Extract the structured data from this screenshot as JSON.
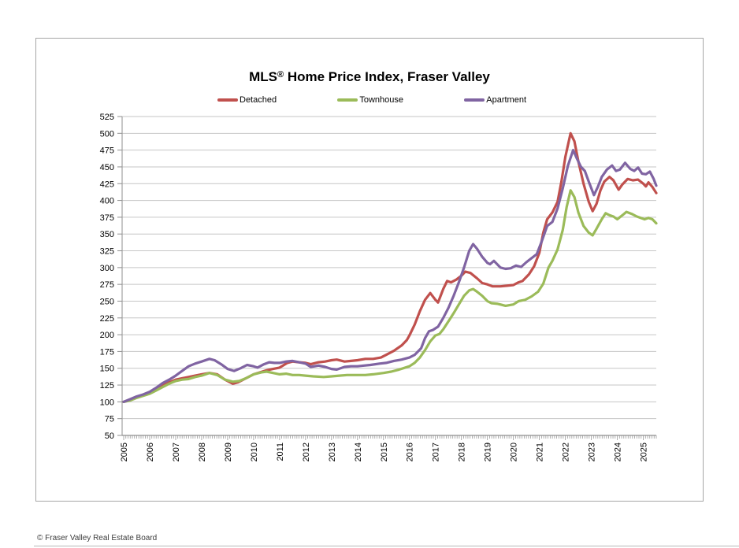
{
  "page": {
    "footer": "© Fraser Valley Real Estate Board"
  },
  "chart_data": {
    "type": "line",
    "title": "MLS® Home Price Index, Fraser Valley",
    "title_parts": {
      "mls": "MLS",
      "reg": "®",
      "rest": " Home Price Index, Fraser Valley"
    },
    "grid": true,
    "legend_position": "top",
    "x_axis": {
      "start": 2005,
      "end": 2025.5,
      "minor_ticks": "monthly",
      "tick_labels": [
        "2005",
        "2006",
        "2007",
        "2008",
        "2009",
        "2010",
        "2011",
        "2012",
        "2013",
        "2014",
        "2015",
        "2016",
        "2017",
        "2018",
        "2019",
        "2020",
        "2021",
        "2022",
        "2023",
        "2024",
        "2025"
      ]
    },
    "y_axis": {
      "min": 50,
      "max": 525,
      "step": 25,
      "tick_labels": [
        "525",
        "500",
        "475",
        "450",
        "425",
        "400",
        "375",
        "350",
        "325",
        "300",
        "275",
        "250",
        "225",
        "200",
        "175",
        "150",
        "125",
        "100",
        "75",
        "50"
      ]
    },
    "series": [
      {
        "name": "Detached",
        "color": "#C0504D",
        "points": [
          [
            2005,
            100
          ],
          [
            2005.25,
            103
          ],
          [
            2005.5,
            107
          ],
          [
            2005.75,
            110
          ],
          [
            2006,
            113
          ],
          [
            2006.25,
            118
          ],
          [
            2006.5,
            124
          ],
          [
            2006.75,
            129
          ],
          [
            2007,
            133
          ],
          [
            2007.25,
            135
          ],
          [
            2007.5,
            137
          ],
          [
            2007.75,
            139
          ],
          [
            2008,
            141
          ],
          [
            2008.3,
            143
          ],
          [
            2008.6,
            141
          ],
          [
            2008.9,
            133
          ],
          [
            2009.2,
            127
          ],
          [
            2009.4,
            129
          ],
          [
            2009.6,
            133
          ],
          [
            2009.8,
            137
          ],
          [
            2010,
            141
          ],
          [
            2010.25,
            144
          ],
          [
            2010.5,
            147
          ],
          [
            2010.75,
            149
          ],
          [
            2011,
            151
          ],
          [
            2011.3,
            158
          ],
          [
            2011.5,
            160
          ],
          [
            2011.75,
            159
          ],
          [
            2012,
            158
          ],
          [
            2012.2,
            156
          ],
          [
            2012.5,
            159
          ],
          [
            2012.75,
            160
          ],
          [
            2013,
            162
          ],
          [
            2013.2,
            163
          ],
          [
            2013.5,
            160
          ],
          [
            2013.75,
            161
          ],
          [
            2014,
            162
          ],
          [
            2014.3,
            164
          ],
          [
            2014.6,
            164
          ],
          [
            2014.9,
            166
          ],
          [
            2015.1,
            170
          ],
          [
            2015.4,
            176
          ],
          [
            2015.7,
            184
          ],
          [
            2015.9,
            192
          ],
          [
            2016,
            199
          ],
          [
            2016.2,
            215
          ],
          [
            2016.4,
            235
          ],
          [
            2016.6,
            252
          ],
          [
            2016.8,
            262
          ],
          [
            2017,
            252
          ],
          [
            2017.1,
            248
          ],
          [
            2017.3,
            268
          ],
          [
            2017.45,
            280
          ],
          [
            2017.6,
            278
          ],
          [
            2017.8,
            282
          ],
          [
            2018,
            288
          ],
          [
            2018.15,
            294
          ],
          [
            2018.35,
            292
          ],
          [
            2018.6,
            284
          ],
          [
            2018.8,
            277
          ],
          [
            2019,
            275
          ],
          [
            2019.2,
            272
          ],
          [
            2019.5,
            272
          ],
          [
            2019.75,
            273
          ],
          [
            2020,
            274
          ],
          [
            2020.2,
            278
          ],
          [
            2020.35,
            280
          ],
          [
            2020.6,
            290
          ],
          [
            2020.8,
            302
          ],
          [
            2021,
            322
          ],
          [
            2021.15,
            352
          ],
          [
            2021.3,
            372
          ],
          [
            2021.5,
            382
          ],
          [
            2021.7,
            398
          ],
          [
            2021.85,
            428
          ],
          [
            2022,
            465
          ],
          [
            2022.2,
            500
          ],
          [
            2022.35,
            488
          ],
          [
            2022.5,
            458
          ],
          [
            2022.7,
            425
          ],
          [
            2022.9,
            398
          ],
          [
            2023.05,
            384
          ],
          [
            2023.2,
            395
          ],
          [
            2023.35,
            415
          ],
          [
            2023.5,
            428
          ],
          [
            2023.7,
            435
          ],
          [
            2023.85,
            430
          ],
          [
            2024.05,
            416
          ],
          [
            2024.2,
            424
          ],
          [
            2024.4,
            432
          ],
          [
            2024.6,
            430
          ],
          [
            2024.8,
            431
          ],
          [
            2025,
            425
          ],
          [
            2025.1,
            421
          ],
          [
            2025.2,
            427
          ],
          [
            2025.35,
            420
          ],
          [
            2025.5,
            411
          ]
        ]
      },
      {
        "name": "Townhouse",
        "color": "#9BBB59",
        "points": [
          [
            2005,
            100
          ],
          [
            2005.25,
            102
          ],
          [
            2005.5,
            106
          ],
          [
            2005.75,
            109
          ],
          [
            2006,
            112
          ],
          [
            2006.25,
            117
          ],
          [
            2006.5,
            122
          ],
          [
            2006.75,
            127
          ],
          [
            2007,
            131
          ],
          [
            2007.25,
            133
          ],
          [
            2007.5,
            134
          ],
          [
            2007.75,
            137
          ],
          [
            2008,
            139
          ],
          [
            2008.3,
            143
          ],
          [
            2008.6,
            140
          ],
          [
            2008.9,
            133
          ],
          [
            2009.2,
            130
          ],
          [
            2009.45,
            131
          ],
          [
            2009.7,
            135
          ],
          [
            2010,
            141
          ],
          [
            2010.3,
            144
          ],
          [
            2010.5,
            145
          ],
          [
            2010.75,
            143
          ],
          [
            2011,
            141
          ],
          [
            2011.25,
            142
          ],
          [
            2011.5,
            140
          ],
          [
            2011.75,
            140
          ],
          [
            2012,
            139
          ],
          [
            2012.3,
            138
          ],
          [
            2012.7,
            137
          ],
          [
            2013,
            138
          ],
          [
            2013.3,
            139
          ],
          [
            2013.6,
            140
          ],
          [
            2014,
            140
          ],
          [
            2014.3,
            140
          ],
          [
            2014.6,
            141
          ],
          [
            2015,
            143
          ],
          [
            2015.3,
            145
          ],
          [
            2015.6,
            148
          ],
          [
            2016,
            153
          ],
          [
            2016.2,
            158
          ],
          [
            2016.4,
            166
          ],
          [
            2016.6,
            177
          ],
          [
            2016.8,
            190
          ],
          [
            2017,
            199
          ],
          [
            2017.15,
            201
          ],
          [
            2017.3,
            208
          ],
          [
            2017.5,
            220
          ],
          [
            2017.7,
            232
          ],
          [
            2017.9,
            245
          ],
          [
            2018.1,
            258
          ],
          [
            2018.3,
            266
          ],
          [
            2018.45,
            268
          ],
          [
            2018.6,
            264
          ],
          [
            2018.8,
            258
          ],
          [
            2019,
            250
          ],
          [
            2019.15,
            247
          ],
          [
            2019.4,
            246
          ],
          [
            2019.7,
            243
          ],
          [
            2020,
            245
          ],
          [
            2020.2,
            250
          ],
          [
            2020.45,
            252
          ],
          [
            2020.7,
            257
          ],
          [
            2020.95,
            264
          ],
          [
            2021.15,
            276
          ],
          [
            2021.35,
            300
          ],
          [
            2021.5,
            310
          ],
          [
            2021.7,
            327
          ],
          [
            2021.9,
            356
          ],
          [
            2022.05,
            390
          ],
          [
            2022.2,
            415
          ],
          [
            2022.35,
            405
          ],
          [
            2022.5,
            382
          ],
          [
            2022.7,
            362
          ],
          [
            2022.9,
            352
          ],
          [
            2023.05,
            348
          ],
          [
            2023.2,
            358
          ],
          [
            2023.4,
            372
          ],
          [
            2023.55,
            381
          ],
          [
            2023.7,
            378
          ],
          [
            2023.85,
            376
          ],
          [
            2024,
            372
          ],
          [
            2024.2,
            378
          ],
          [
            2024.35,
            383
          ],
          [
            2024.55,
            380
          ],
          [
            2024.75,
            376
          ],
          [
            2024.9,
            374
          ],
          [
            2025.05,
            372
          ],
          [
            2025.2,
            374
          ],
          [
            2025.35,
            372
          ],
          [
            2025.5,
            366
          ]
        ]
      },
      {
        "name": "Apartment",
        "color": "#8064A2",
        "points": [
          [
            2005,
            100
          ],
          [
            2005.25,
            104
          ],
          [
            2005.5,
            108
          ],
          [
            2005.75,
            111
          ],
          [
            2006,
            115
          ],
          [
            2006.25,
            121
          ],
          [
            2006.5,
            128
          ],
          [
            2006.75,
            133
          ],
          [
            2007,
            139
          ],
          [
            2007.25,
            146
          ],
          [
            2007.5,
            153
          ],
          [
            2007.75,
            157
          ],
          [
            2008,
            160
          ],
          [
            2008.3,
            164
          ],
          [
            2008.5,
            162
          ],
          [
            2008.75,
            156
          ],
          [
            2009,
            149
          ],
          [
            2009.25,
            146
          ],
          [
            2009.5,
            150
          ],
          [
            2009.75,
            155
          ],
          [
            2010,
            153
          ],
          [
            2010.15,
            151
          ],
          [
            2010.4,
            156
          ],
          [
            2010.6,
            159
          ],
          [
            2010.8,
            158
          ],
          [
            2011,
            158
          ],
          [
            2011.25,
            160
          ],
          [
            2011.5,
            161
          ],
          [
            2011.75,
            159
          ],
          [
            2012,
            157
          ],
          [
            2012.2,
            152
          ],
          [
            2012.5,
            154
          ],
          [
            2012.75,
            152
          ],
          [
            2013,
            149
          ],
          [
            2013.2,
            148
          ],
          [
            2013.5,
            152
          ],
          [
            2013.75,
            153
          ],
          [
            2014,
            153
          ],
          [
            2014.25,
            154
          ],
          [
            2014.5,
            155
          ],
          [
            2014.85,
            157
          ],
          [
            2015.1,
            158
          ],
          [
            2015.4,
            161
          ],
          [
            2015.7,
            163
          ],
          [
            2016,
            166
          ],
          [
            2016.2,
            170
          ],
          [
            2016.45,
            180
          ],
          [
            2016.6,
            195
          ],
          [
            2016.75,
            205
          ],
          [
            2016.9,
            207
          ],
          [
            2017.1,
            212
          ],
          [
            2017.3,
            225
          ],
          [
            2017.5,
            240
          ],
          [
            2017.7,
            258
          ],
          [
            2017.9,
            278
          ],
          [
            2018.1,
            300
          ],
          [
            2018.3,
            325
          ],
          [
            2018.45,
            335
          ],
          [
            2018.6,
            328
          ],
          [
            2018.8,
            316
          ],
          [
            2019,
            307
          ],
          [
            2019.1,
            305
          ],
          [
            2019.25,
            310
          ],
          [
            2019.5,
            300
          ],
          [
            2019.7,
            298
          ],
          [
            2019.9,
            299
          ],
          [
            2020.1,
            303
          ],
          [
            2020.3,
            301
          ],
          [
            2020.5,
            308
          ],
          [
            2020.7,
            314
          ],
          [
            2020.9,
            320
          ],
          [
            2021.1,
            340
          ],
          [
            2021.3,
            362
          ],
          [
            2021.5,
            368
          ],
          [
            2021.7,
            388
          ],
          [
            2021.9,
            418
          ],
          [
            2022.1,
            452
          ],
          [
            2022.3,
            475
          ],
          [
            2022.45,
            462
          ],
          [
            2022.6,
            450
          ],
          [
            2022.75,
            444
          ],
          [
            2022.9,
            428
          ],
          [
            2023.1,
            408
          ],
          [
            2023.25,
            420
          ],
          [
            2023.4,
            435
          ],
          [
            2023.6,
            446
          ],
          [
            2023.8,
            452
          ],
          [
            2023.95,
            444
          ],
          [
            2024.1,
            446
          ],
          [
            2024.3,
            456
          ],
          [
            2024.5,
            447
          ],
          [
            2024.65,
            444
          ],
          [
            2024.8,
            449
          ],
          [
            2024.95,
            440
          ],
          [
            2025.1,
            439
          ],
          [
            2025.25,
            443
          ],
          [
            2025.4,
            432
          ],
          [
            2025.5,
            422
          ]
        ]
      }
    ]
  }
}
